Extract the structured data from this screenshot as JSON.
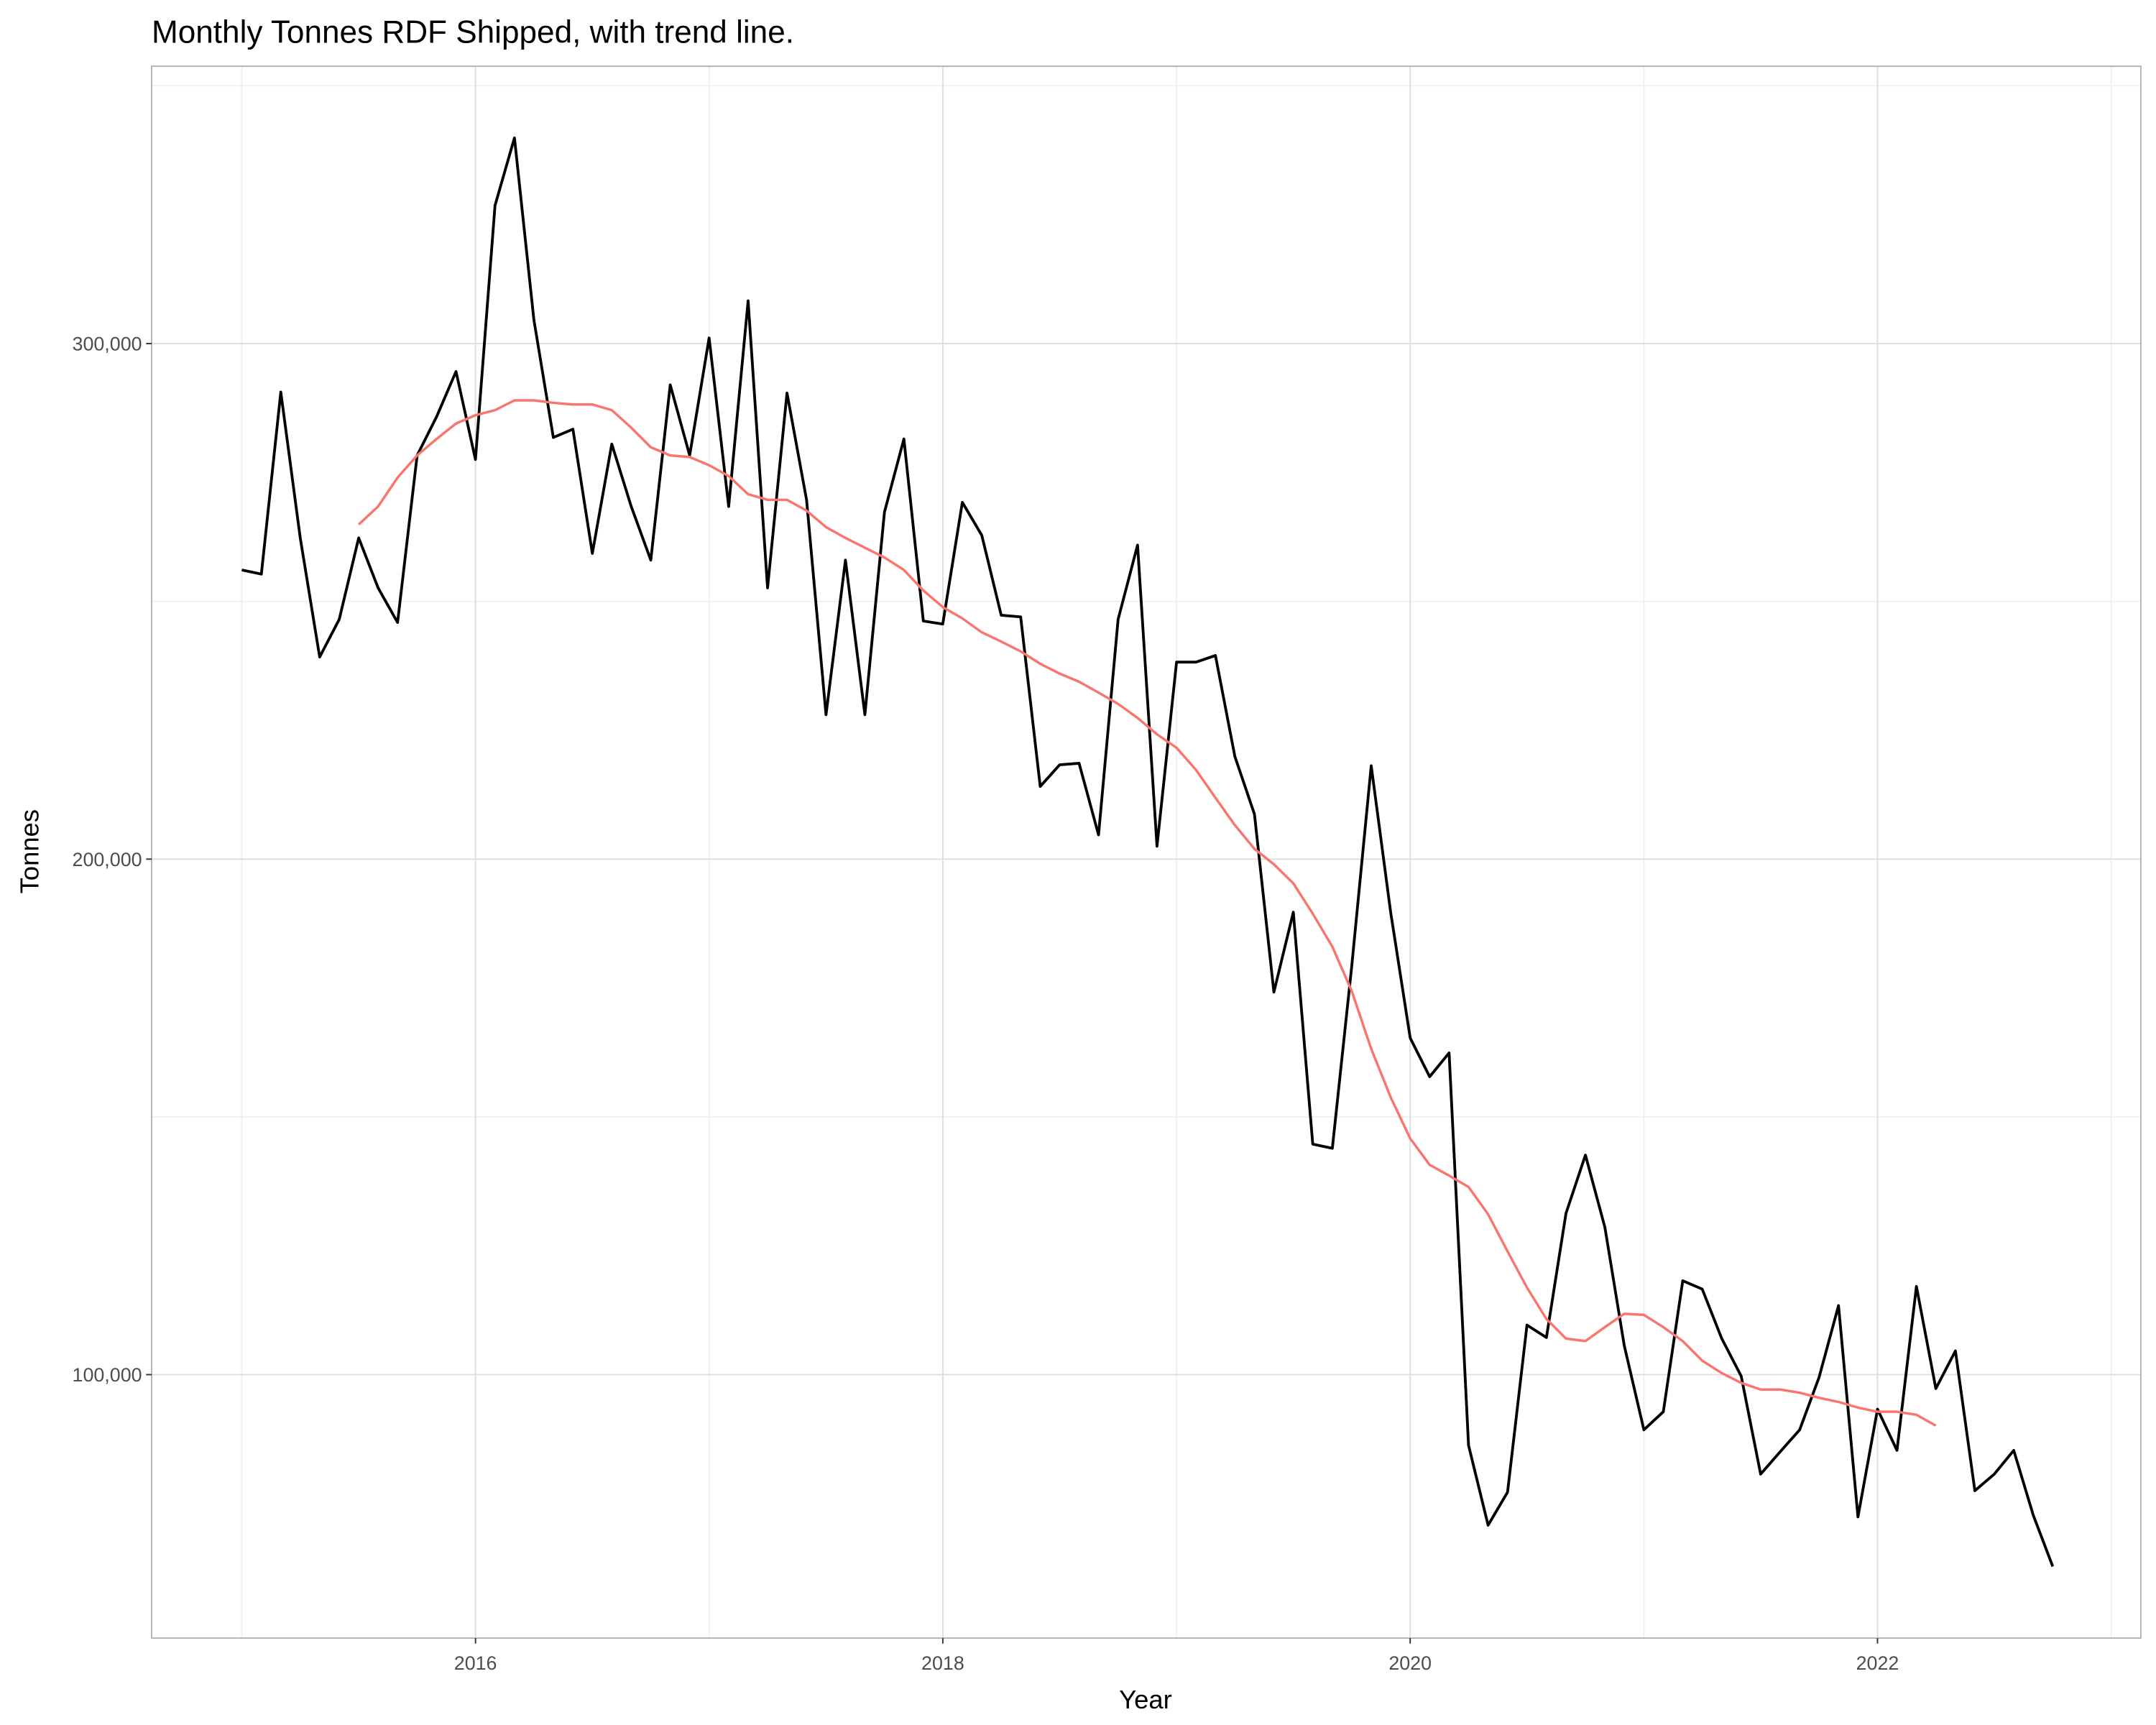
{
  "chart_data": {
    "type": "line",
    "title": "Monthly Tonnes RDF Shipped, with trend line.",
    "xlabel": "Year",
    "ylabel": "Tonnes",
    "xlim": [
      "2014-08",
      "2023-02"
    ],
    "ylim": [
      48900,
      353800
    ],
    "x_ticks": [
      "2016",
      "2018",
      "2020",
      "2022"
    ],
    "y_ticks": [
      100000,
      200000,
      300000
    ],
    "y_tick_labels": [
      "100,000",
      "200,000",
      "300,000"
    ],
    "grid": true,
    "legend": "none",
    "series": [
      {
        "color": "#000000",
        "start": "2015-01",
        "values": [
          256100,
          255300,
          290600,
          262300,
          239200,
          246500,
          262300,
          252600,
          245900,
          278300,
          285800,
          294600,
          277500,
          326800,
          339900,
          304600,
          281800,
          283400,
          259300,
          280500,
          268400,
          258000,
          292000,
          278300,
          301100,
          268400,
          308300,
          252600,
          290400,
          269700,
          228000,
          258000,
          228000,
          267300,
          281500,
          246200,
          245600,
          269200,
          262800,
          247300,
          247000,
          214100,
          218300,
          218600,
          204700,
          246500,
          260900,
          202500,
          238200,
          238200,
          239500,
          219900,
          208700,
          174200,
          189700,
          144700,
          143900,
          179300,
          218100,
          189700,
          165300,
          157800,
          162400,
          86300,
          70800,
          77200,
          109600,
          107200,
          131300,
          142600,
          128600,
          105600,
          89300,
          92800,
          118200,
          116600,
          107000,
          99700,
          80700,
          85000,
          89300,
          99500,
          113400,
          72400,
          93300,
          85300,
          117100,
          97300,
          104600,
          77500,
          80700,
          85300,
          72700,
          62800
        ]
      },
      {
        "color": "#F8766D",
        "start": "2015-07",
        "values": [
          264900,
          268400,
          274000,
          278300,
          281500,
          284500,
          286100,
          287100,
          289000,
          289000,
          288500,
          288200,
          288200,
          287100,
          283700,
          279900,
          278300,
          278000,
          276400,
          274300,
          270800,
          269700,
          269700,
          267600,
          264400,
          262300,
          260400,
          258500,
          256100,
          252100,
          248900,
          246700,
          244000,
          242200,
          240300,
          237900,
          236000,
          234400,
          232300,
          230100,
          227400,
          224200,
          221600,
          217300,
          211900,
          206600,
          202000,
          199000,
          195300,
          189400,
          183000,
          174400,
          163200,
          153800,
          145800,
          140700,
          138600,
          136400,
          131100,
          123900,
          116900,
          110800,
          107000,
          106500,
          109200,
          111800,
          111600,
          109200,
          106500,
          102700,
          100300,
          98400,
          97100,
          97100,
          96500,
          95500,
          94700,
          93600,
          92800,
          92800,
          92200,
          90100
        ]
      }
    ]
  }
}
